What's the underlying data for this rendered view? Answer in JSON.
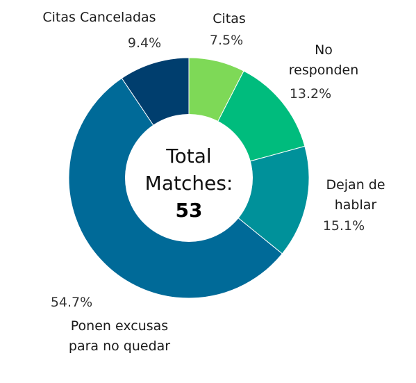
{
  "chart_data": {
    "type": "donut",
    "title": "",
    "center": {
      "line1": "Total",
      "line2": "Matches:",
      "value": "53"
    },
    "slices": [
      {
        "name": "Citas",
        "label_lines": [
          "Citas"
        ],
        "value": 4,
        "percent": "7.5%",
        "color": "#7ed957"
      },
      {
        "name": "No responden",
        "label_lines": [
          "No",
          "responden"
        ],
        "value": 7,
        "percent": "13.2%",
        "color": "#00bc7d"
      },
      {
        "name": "Dejan de hablar",
        "label_lines": [
          "Dejan de",
          "hablar"
        ],
        "value": 8,
        "percent": "15.1%",
        "color": "#00919a"
      },
      {
        "name": "Ponen excusas para no quedar",
        "label_lines": [
          "Ponen excusas",
          "para no quedar"
        ],
        "value": 29,
        "percent": "54.7%",
        "color": "#006a98"
      },
      {
        "name": "Citas Canceladas",
        "label_lines": [
          "Citas Canceladas"
        ],
        "value": 5,
        "percent": "9.4%",
        "color": "#003e6e"
      }
    ]
  }
}
